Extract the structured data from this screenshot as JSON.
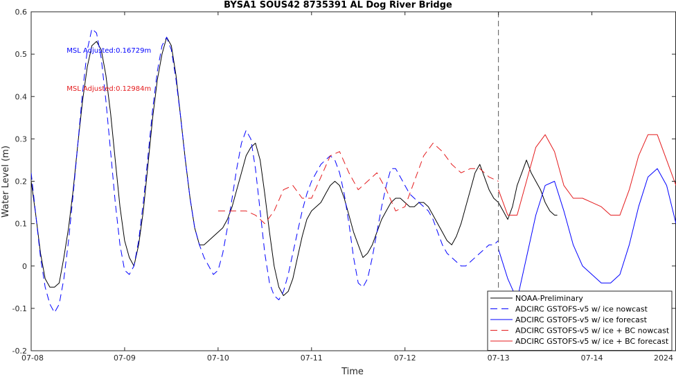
{
  "chart_data": {
    "type": "line",
    "title": "BYSA1 SOUS42 8735391 AL Dog River Bridge",
    "xlabel": "Time",
    "ylabel": "Water Level (m)",
    "xlim": [
      0,
      6.9
    ],
    "ylim": [
      -0.2,
      0.6
    ],
    "yticks": [
      -0.2,
      -0.1,
      0,
      0.1,
      0.2,
      0.3,
      0.4,
      0.5,
      0.6
    ],
    "yticklabels": [
      "-0.2",
      "-0.1",
      "0",
      "0.1",
      "0.2",
      "0.3",
      "0.4",
      "0.5",
      "0.6"
    ],
    "xticks": [
      0,
      1,
      2,
      3,
      4,
      5,
      6,
      6.9
    ],
    "xticklabels": [
      "07-08",
      "07-09",
      "07-10",
      "07-11",
      "07-12",
      "07-13",
      "07-14",
      "2024"
    ],
    "vline_x": 5.0,
    "grid": false,
    "legend_position": "bottom-right",
    "annotations": [
      {
        "text": "MSL Adjusted:0.16729m",
        "color": "#0000ff",
        "x": 0.38,
        "y": 0.51
      },
      {
        "text": "MSL Adjusted:0.12984m",
        "color": "#e41a1c",
        "x": 0.38,
        "y": 0.42
      }
    ],
    "series": [
      {
        "name": "NOAA-Preliminary",
        "color": "#000000",
        "dash": "solid",
        "x": [
          0.0,
          0.05,
          0.1,
          0.15,
          0.2,
          0.25,
          0.3,
          0.35,
          0.4,
          0.45,
          0.5,
          0.55,
          0.6,
          0.65,
          0.7,
          0.75,
          0.8,
          0.85,
          0.9,
          0.95,
          1.0,
          1.05,
          1.1,
          1.15,
          1.2,
          1.25,
          1.3,
          1.35,
          1.4,
          1.45,
          1.5,
          1.55,
          1.6,
          1.65,
          1.7,
          1.75,
          1.8,
          1.85,
          1.9,
          1.95,
          2.0,
          2.05,
          2.1,
          2.15,
          2.2,
          2.25,
          2.3,
          2.35,
          2.4,
          2.45,
          2.5,
          2.55,
          2.6,
          2.65,
          2.7,
          2.75,
          2.8,
          2.85,
          2.9,
          2.95,
          3.0,
          3.05,
          3.1,
          3.15,
          3.2,
          3.25,
          3.3,
          3.35,
          3.4,
          3.45,
          3.5,
          3.55,
          3.6,
          3.65,
          3.7,
          3.75,
          3.8,
          3.85,
          3.9,
          3.95,
          4.0,
          4.05,
          4.1,
          4.15,
          4.2,
          4.25,
          4.3,
          4.35,
          4.4,
          4.45,
          4.5,
          4.55,
          4.6,
          4.65,
          4.7,
          4.75,
          4.8,
          4.85,
          4.9,
          4.95,
          5.0,
          5.05,
          5.1,
          5.15,
          5.2,
          5.25,
          5.3,
          5.35,
          5.4,
          5.45,
          5.5,
          5.55,
          5.6,
          5.63
        ],
        "y": [
          0.2,
          0.12,
          0.03,
          -0.03,
          -0.05,
          -0.05,
          -0.04,
          0.02,
          0.09,
          0.18,
          0.29,
          0.39,
          0.47,
          0.52,
          0.53,
          0.51,
          0.45,
          0.36,
          0.25,
          0.14,
          0.06,
          0.02,
          0.0,
          0.05,
          0.13,
          0.24,
          0.35,
          0.44,
          0.5,
          0.54,
          0.52,
          0.45,
          0.35,
          0.25,
          0.16,
          0.09,
          0.05,
          0.05,
          0.06,
          0.07,
          0.08,
          0.09,
          0.11,
          0.14,
          0.18,
          0.22,
          0.26,
          0.28,
          0.29,
          0.25,
          0.17,
          0.08,
          0.0,
          -0.05,
          -0.07,
          -0.06,
          -0.03,
          0.02,
          0.07,
          0.11,
          0.13,
          0.14,
          0.15,
          0.17,
          0.19,
          0.2,
          0.19,
          0.16,
          0.12,
          0.08,
          0.05,
          0.02,
          0.03,
          0.05,
          0.08,
          0.11,
          0.13,
          0.15,
          0.16,
          0.16,
          0.15,
          0.14,
          0.14,
          0.15,
          0.15,
          0.14,
          0.12,
          0.1,
          0.08,
          0.06,
          0.05,
          0.07,
          0.1,
          0.14,
          0.18,
          0.22,
          0.24,
          0.21,
          0.18,
          0.16,
          0.15,
          0.13,
          0.11,
          0.14,
          0.19,
          0.22,
          0.25,
          0.22,
          0.2,
          0.18,
          0.15,
          0.13,
          0.12,
          0.12
        ]
      },
      {
        "name": "ADCIRC GSTOFS-v5 w/ ice nowcast",
        "color": "#0000ff",
        "dash": "dashed",
        "x": [
          0.0,
          0.05,
          0.1,
          0.15,
          0.2,
          0.25,
          0.3,
          0.35,
          0.4,
          0.45,
          0.5,
          0.55,
          0.6,
          0.65,
          0.7,
          0.75,
          0.8,
          0.85,
          0.9,
          0.95,
          1.0,
          1.05,
          1.1,
          1.15,
          1.2,
          1.25,
          1.3,
          1.35,
          1.4,
          1.45,
          1.5,
          1.55,
          1.6,
          1.65,
          1.7,
          1.75,
          1.8,
          1.85,
          1.9,
          1.95,
          2.0,
          2.05,
          2.1,
          2.15,
          2.2,
          2.25,
          2.3,
          2.35,
          2.4,
          2.45,
          2.5,
          2.55,
          2.6,
          2.65,
          2.7,
          2.75,
          2.8,
          2.85,
          2.9,
          2.95,
          3.0,
          3.05,
          3.1,
          3.15,
          3.2,
          3.25,
          3.3,
          3.35,
          3.4,
          3.45,
          3.5,
          3.55,
          3.6,
          3.65,
          3.7,
          3.75,
          3.8,
          3.85,
          3.9,
          3.95,
          4.0,
          4.05,
          4.1,
          4.15,
          4.2,
          4.25,
          4.3,
          4.35,
          4.4,
          4.45,
          4.5,
          4.55,
          4.6,
          4.65,
          4.7,
          4.75,
          4.8,
          4.85,
          4.9,
          4.95,
          5.0
        ],
        "y": [
          0.22,
          0.12,
          0.02,
          -0.05,
          -0.09,
          -0.11,
          -0.09,
          -0.03,
          0.06,
          0.17,
          0.29,
          0.41,
          0.51,
          0.56,
          0.55,
          0.49,
          0.39,
          0.27,
          0.15,
          0.05,
          -0.01,
          -0.02,
          0.0,
          0.06,
          0.15,
          0.26,
          0.37,
          0.46,
          0.52,
          0.54,
          0.51,
          0.44,
          0.35,
          0.25,
          0.16,
          0.09,
          0.05,
          0.02,
          0.0,
          -0.02,
          -0.01,
          0.03,
          0.09,
          0.16,
          0.23,
          0.29,
          0.32,
          0.3,
          0.23,
          0.13,
          0.03,
          -0.04,
          -0.07,
          -0.08,
          -0.06,
          -0.02,
          0.03,
          0.08,
          0.13,
          0.17,
          0.2,
          0.22,
          0.24,
          0.25,
          0.26,
          0.25,
          0.22,
          0.17,
          0.1,
          0.02,
          -0.04,
          -0.05,
          -0.03,
          0.02,
          0.08,
          0.14,
          0.19,
          0.23,
          0.23,
          0.21,
          0.19,
          0.17,
          0.16,
          0.15,
          0.14,
          0.13,
          0.11,
          0.08,
          0.05,
          0.03,
          0.02,
          0.01,
          0.0,
          0.0,
          0.01,
          0.02,
          0.03,
          0.04,
          0.05,
          0.05,
          0.06
        ]
      },
      {
        "name": "ADCIRC GSTOFS-v5 w/ ice forecast",
        "color": "#0000ff",
        "dash": "solid",
        "x": [
          5.0,
          5.1,
          5.2,
          5.3,
          5.4,
          5.5,
          5.6,
          5.7,
          5.8,
          5.9,
          6.0,
          6.1,
          6.2,
          6.3,
          6.4,
          6.5,
          6.6,
          6.7,
          6.8,
          6.9
        ],
        "y": [
          0.04,
          -0.03,
          -0.08,
          0.02,
          0.12,
          0.19,
          0.2,
          0.13,
          0.05,
          0.0,
          -0.02,
          -0.04,
          -0.04,
          -0.02,
          0.05,
          0.14,
          0.21,
          0.23,
          0.19,
          0.1
        ]
      },
      {
        "name": "ADCIRC GSTOFS-v5 w/ ice + BC nowcast",
        "color": "#e41a1c",
        "dash": "dashed",
        "x": [
          2.0,
          2.1,
          2.2,
          2.3,
          2.4,
          2.5,
          2.6,
          2.7,
          2.8,
          2.9,
          3.0,
          3.1,
          3.2,
          3.3,
          3.4,
          3.5,
          3.6,
          3.7,
          3.8,
          3.9,
          4.0,
          4.1,
          4.2,
          4.3,
          4.4,
          4.5,
          4.6,
          4.7,
          4.8,
          4.9,
          5.0
        ],
        "y": [
          0.13,
          0.13,
          0.13,
          0.13,
          0.12,
          0.1,
          0.13,
          0.18,
          0.19,
          0.16,
          0.16,
          0.21,
          0.26,
          0.27,
          0.22,
          0.18,
          0.2,
          0.22,
          0.18,
          0.13,
          0.14,
          0.2,
          0.26,
          0.29,
          0.27,
          0.24,
          0.22,
          0.23,
          0.23,
          0.21,
          0.2
        ]
      },
      {
        "name": "ADCIRC GSTOFS-v5 w/ ice + BC forecast",
        "color": "#e41a1c",
        "dash": "solid",
        "x": [
          5.0,
          5.1,
          5.2,
          5.3,
          5.4,
          5.5,
          5.6,
          5.7,
          5.8,
          5.9,
          6.0,
          6.1,
          6.2,
          6.3,
          6.4,
          6.5,
          6.6,
          6.7,
          6.8,
          6.9
        ],
        "y": [
          0.18,
          0.12,
          0.12,
          0.2,
          0.28,
          0.31,
          0.27,
          0.19,
          0.16,
          0.16,
          0.15,
          0.14,
          0.12,
          0.12,
          0.18,
          0.26,
          0.31,
          0.31,
          0.25,
          0.19
        ]
      }
    ]
  }
}
